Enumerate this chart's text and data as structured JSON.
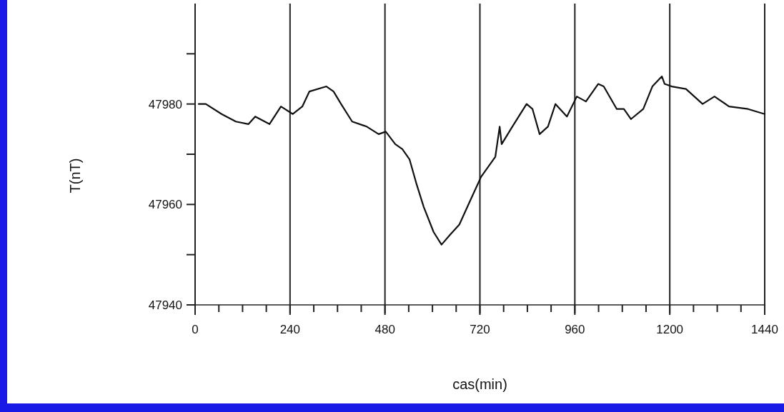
{
  "chart_data": {
    "type": "line",
    "xlabel": "cas(min)",
    "ylabel": "T(nT)",
    "xlim": [
      0,
      1440
    ],
    "ylim": [
      47940,
      48000
    ],
    "xticks": [
      0,
      {
        "value": 60,
        "label": null
      },
      {
        "value": 120,
        "label": null
      },
      {
        "value": 180,
        "label": null
      },
      240,
      {
        "value": 300,
        "label": null
      },
      {
        "value": 360,
        "label": null
      },
      {
        "value": 420,
        "label": null
      },
      480,
      {
        "value": 540,
        "label": null
      },
      {
        "value": 600,
        "label": null
      },
      {
        "value": 660,
        "label": null
      },
      720,
      {
        "value": 780,
        "label": null
      },
      {
        "value": 840,
        "label": null
      },
      {
        "value": 900,
        "label": null
      },
      960,
      {
        "value": 1020,
        "label": null
      },
      {
        "value": 1080,
        "label": null
      },
      {
        "value": 1140,
        "label": null
      },
      1200,
      {
        "value": 1260,
        "label": null
      },
      {
        "value": 1320,
        "label": null
      },
      {
        "value": 1380,
        "label": null
      },
      1440
    ],
    "yticks": [
      47940,
      {
        "value": 47950,
        "label": null
      },
      47960,
      {
        "value": 47970,
        "label": null
      },
      47980,
      {
        "value": 47990,
        "label": null
      }
    ],
    "grid": "x",
    "marker": "none",
    "line_style": "solid",
    "series": [
      {
        "color": "#111111",
        "x": [
          9,
          27,
          67,
          103,
          135,
          152,
          188,
          217,
          247,
          271,
          289,
          332,
          350,
          369,
          397,
          434,
          464,
          482,
          506,
          524,
          542,
          560,
          578,
          603,
          623,
          645,
          668,
          694,
          723,
          759,
          770,
          775,
          802,
          838,
          853,
          871,
          892,
          911,
          940,
          965,
          988,
          1019,
          1033,
          1066,
          1084,
          1102,
          1133,
          1156,
          1180,
          1187,
          1205,
          1241,
          1283,
          1313,
          1350,
          1398,
          1440
        ],
        "values": [
          47980,
          47980,
          47978,
          47976.5,
          47976,
          47977.5,
          47976,
          47979.5,
          47978,
          47979.5,
          47982.5,
          47983.5,
          47982.5,
          47980,
          47976.5,
          47975.5,
          47974,
          47974.5,
          47972,
          47971,
          47969,
          47964,
          47959.5,
          47954.5,
          47952,
          47954,
          47956,
          47960.5,
          47965.5,
          47969.5,
          47975.5,
          47972,
          47975.5,
          47980,
          47979,
          47974,
          47975.5,
          47980,
          47977.5,
          47981.5,
          47980.5,
          47984,
          47983.5,
          47979,
          47979,
          47977,
          47979,
          47983.5,
          47985.5,
          47984,
          47983.5,
          47983,
          47980,
          47981.5,
          47979.5,
          47979,
          47978
        ]
      }
    ]
  }
}
